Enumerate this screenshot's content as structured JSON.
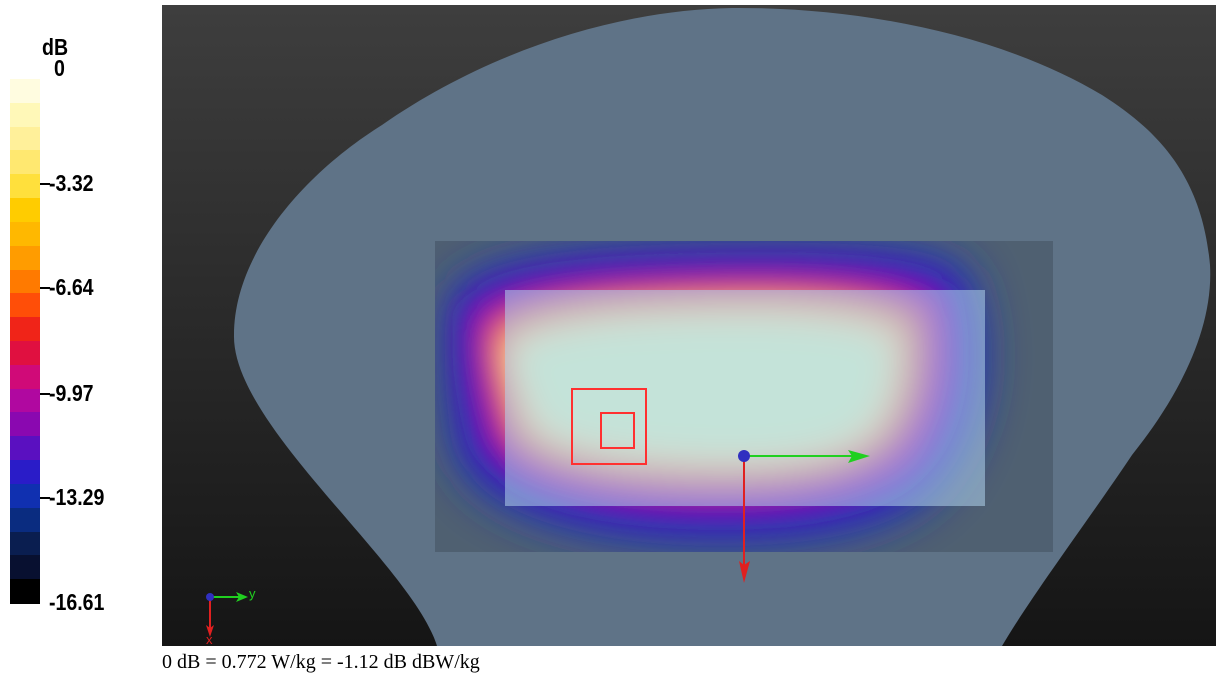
{
  "legend": {
    "unit": "dB",
    "ticks": [
      {
        "label": "0",
        "value": 0
      },
      {
        "label": "-3.32",
        "value": -3.32
      },
      {
        "label": "-6.64",
        "value": -6.64
      },
      {
        "label": "-9.97",
        "value": -9.97
      },
      {
        "label": "-13.29",
        "value": -13.29
      },
      {
        "label": "-16.61",
        "value": -16.61
      }
    ],
    "range": [
      -16.61,
      0
    ],
    "colors_top_to_bottom": [
      "#fffce0",
      "#fff8b8",
      "#fff09a",
      "#ffe870",
      "#ffe03c",
      "#ffcc00",
      "#ffb800",
      "#ff9c00",
      "#ff7a00",
      "#ff4e08",
      "#f02418",
      "#e01040",
      "#d00a78",
      "#b008a0",
      "#8a08b0",
      "#5a10c0",
      "#2a1cc8",
      "#1030b0",
      "#0a2c80",
      "#0a1e50",
      "#081030",
      "#000000"
    ]
  },
  "viewport": {
    "background_top": "#3e3e3e",
    "background_bottom": "#151515",
    "phantom_color": "#5f7387",
    "scan_area_color": "#4f6071",
    "zoom_area_color": "#b0d4ec",
    "peak_box_color": "#ff3030",
    "axes": {
      "x_color": "#e02020",
      "y_color": "#20d020",
      "origin_color": "#3030c0"
    },
    "orientation": {
      "x_label": "x",
      "y_label": "y"
    }
  },
  "caption": "0 dB = 0.772 W/kg = -1.12 dB dBW/kg"
}
